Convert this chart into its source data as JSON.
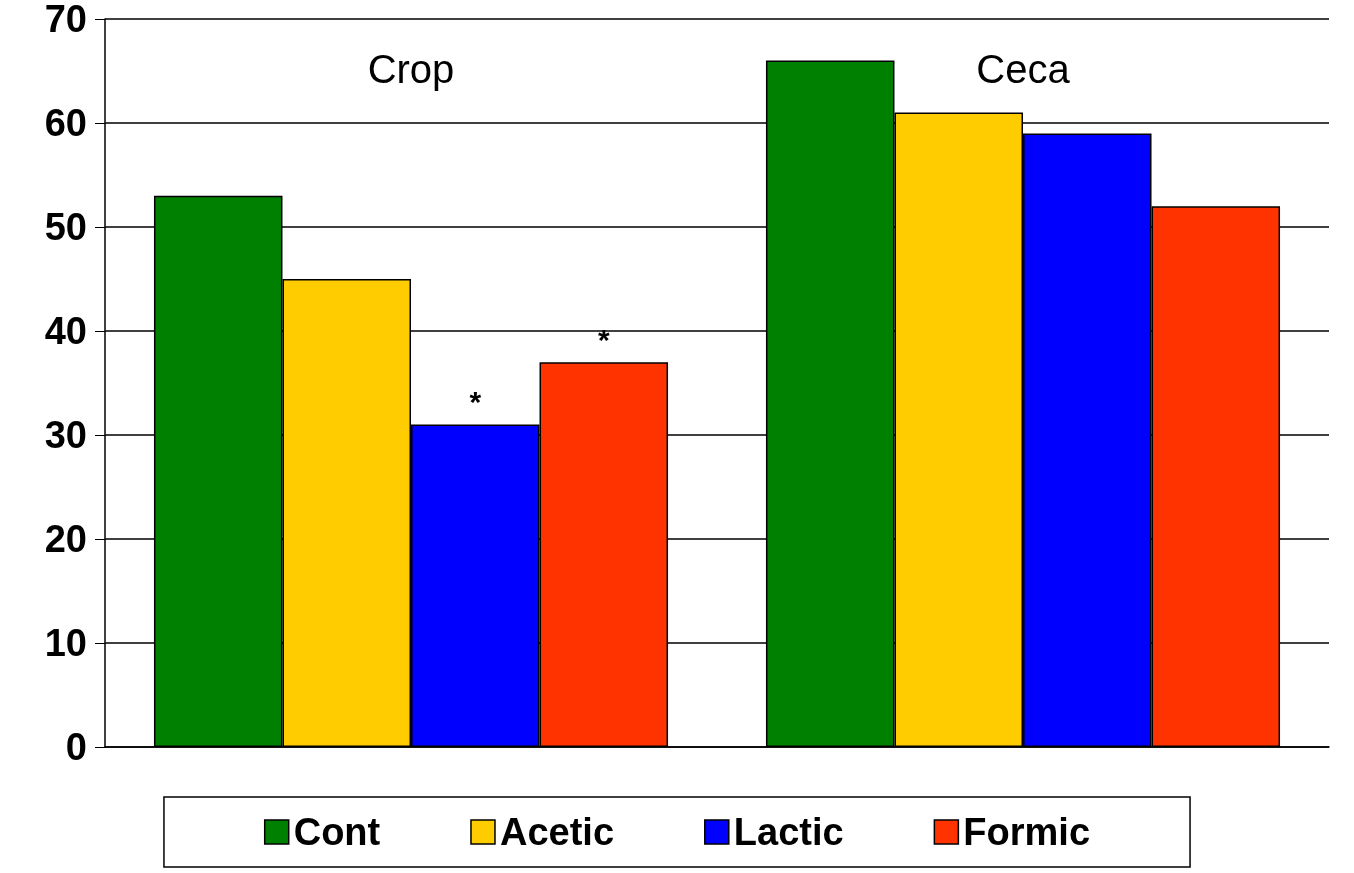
{
  "chart_data": {
    "type": "bar",
    "categories": [
      "Crop",
      "Ceca"
    ],
    "series": [
      {
        "name": "Cont",
        "color": "#008000",
        "values": [
          53,
          66
        ]
      },
      {
        "name": "Acetic",
        "color": "#ffcc00",
        "values": [
          45,
          61
        ]
      },
      {
        "name": "Lactic",
        "color": "#0000ff",
        "values": [
          31,
          59
        ],
        "value_labels": [
          "*",
          null
        ]
      },
      {
        "name": "Formic",
        "color": "#ff3300",
        "values": [
          37,
          52
        ],
        "value_labels": [
          "*",
          null
        ]
      }
    ],
    "ylim": [
      0,
      70
    ],
    "yticks": [
      0,
      10,
      20,
      30,
      40,
      50,
      60,
      70
    ],
    "grid": "y",
    "legend": "bottom"
  }
}
